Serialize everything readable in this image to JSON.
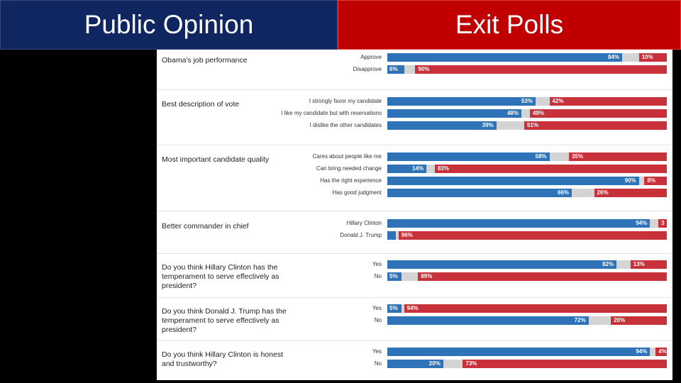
{
  "header": {
    "left_title": "Public Opinion",
    "right_title": "Exit Polls"
  },
  "colors": {
    "left_bg": "#0f2660",
    "right_bg": "#c00000",
    "clinton_blue": "#2e73b8",
    "trump_red": "#c8313a",
    "other_gray": "#d4d4d4"
  },
  "chart_data": {
    "type": "bar",
    "orientation": "horizontal-stacked",
    "series": [
      {
        "name": "Clinton",
        "color": "#2e73b8"
      },
      {
        "name": "Trump",
        "color": "#c8313a"
      }
    ],
    "questions": [
      {
        "title": "Obama's job performance",
        "rows": [
          {
            "label": "Approve",
            "clinton": 84,
            "trump": 10,
            "clinton_label": "84%",
            "trump_label": "10%"
          },
          {
            "label": "Disapprove",
            "clinton": 6,
            "trump": 90,
            "clinton_label": "6%",
            "trump_label": "90%"
          }
        ]
      },
      {
        "title": "Best description of vote",
        "rows": [
          {
            "label": "I strongly favor my candidate",
            "clinton": 53,
            "trump": 42,
            "clinton_label": "53%",
            "trump_label": "42%"
          },
          {
            "label": "I like my candidate but with reservations",
            "clinton": 48,
            "trump": 49,
            "clinton_label": "48%",
            "trump_label": "49%"
          },
          {
            "label": "I dislike the other candidates",
            "clinton": 39,
            "trump": 51,
            "clinton_label": "39%",
            "trump_label": "51%"
          }
        ]
      },
      {
        "title": "Most important candidate quality",
        "rows": [
          {
            "label": "Cares about people like me",
            "clinton": 58,
            "trump": 35,
            "clinton_label": "58%",
            "trump_label": "35%"
          },
          {
            "label": "Can bring needed change",
            "clinton": 14,
            "trump": 83,
            "clinton_label": "14%",
            "trump_label": "83%"
          },
          {
            "label": "Has the right experience",
            "clinton": 90,
            "trump": 8,
            "clinton_label": "90%",
            "trump_label": "8%"
          },
          {
            "label": "Has good judgment",
            "clinton": 66,
            "trump": 26,
            "clinton_label": "66%",
            "trump_label": "26%"
          }
        ]
      },
      {
        "title": "Better commander in chief",
        "rows": [
          {
            "label": "Hillary Clinton",
            "clinton": 94,
            "trump": 3,
            "clinton_label": "94%",
            "trump_label": "3"
          },
          {
            "label": "Donald J. Trump",
            "clinton": 3,
            "trump": 96,
            "clinton_label": "",
            "trump_label": "96%"
          }
        ]
      },
      {
        "title": "Do you think Hillary Clinton has the temperament to serve effectively as president?",
        "rows": [
          {
            "label": "Yes",
            "clinton": 82,
            "trump": 13,
            "clinton_label": "82%",
            "trump_label": "13%"
          },
          {
            "label": "No",
            "clinton": 5,
            "trump": 89,
            "clinton_label": "5%",
            "trump_label": "89%"
          }
        ]
      },
      {
        "title": "Do you think Donald J. Trump has the temperament to serve effectively as president?",
        "rows": [
          {
            "label": "Yes",
            "clinton": 5,
            "trump": 94,
            "clinton_label": "5%",
            "trump_label": "94%"
          },
          {
            "label": "No",
            "clinton": 72,
            "trump": 20,
            "clinton_label": "72%",
            "trump_label": "20%"
          }
        ]
      },
      {
        "title": "Do you think Hillary Clinton is honest and trustworthy?",
        "rows": [
          {
            "label": "Yes",
            "clinton": 94,
            "trump": 4,
            "clinton_label": "94%",
            "trump_label": "4%"
          },
          {
            "label": "No",
            "clinton": 20,
            "trump": 73,
            "clinton_label": "20%",
            "trump_label": "73%"
          }
        ]
      }
    ]
  }
}
